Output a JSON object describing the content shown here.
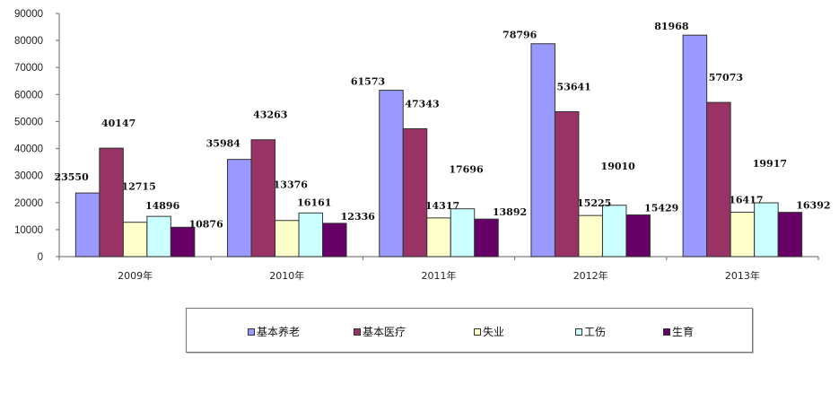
{
  "chart_data": {
    "type": "bar",
    "title": "",
    "xlabel": "",
    "ylabel": "",
    "ylim": [
      0,
      90000
    ],
    "yticks": [
      0,
      10000,
      20000,
      30000,
      40000,
      50000,
      60000,
      70000,
      80000,
      90000
    ],
    "grid": false,
    "legend_position": "bottom",
    "categories": [
      "2009年",
      "2010年",
      "2011年",
      "2012年",
      "2013年"
    ],
    "series": [
      {
        "name": "基本养老",
        "color": "#9999ff",
        "values": [
          23550,
          35984,
          61573,
          78796,
          81968
        ]
      },
      {
        "name": "基本医疗",
        "color": "#993366",
        "values": [
          40147,
          43263,
          47343,
          53641,
          57073
        ]
      },
      {
        "name": "失业",
        "color": "#ffffcc",
        "values": [
          12715,
          13376,
          14317,
          15225,
          16417
        ]
      },
      {
        "name": "工伤",
        "color": "#ccffff",
        "values": [
          14896,
          16161,
          17696,
          19010,
          19917
        ]
      },
      {
        "name": "生育",
        "color": "#660066",
        "values": [
          10876,
          12336,
          13892,
          15429,
          16392
        ]
      }
    ],
    "data_labels": true
  }
}
